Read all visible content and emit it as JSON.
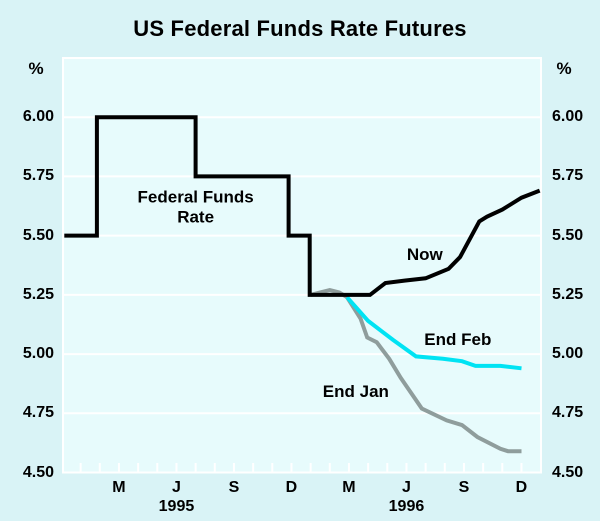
{
  "title": "US Federal Funds Rate Futures",
  "unit_label": "%",
  "colors": {
    "background": "#d9f3f6",
    "plot_background": "#e7fbfc",
    "grid": "#ffffff",
    "fed_funds_now_line": "#000000",
    "end_feb_line": "#00e3f3",
    "end_jan_line": "#8f9d9c"
  },
  "chart_data": {
    "type": "line",
    "title": "US Federal Funds Rate Futures",
    "ylabel": "%",
    "ylim": [
      4.5,
      6.25
    ],
    "x_unit": "months since Dec 1994",
    "xlim_months": [
      0.08,
      25.02
    ],
    "grid": "horizontal white gridlines every 0.25, monthly tick marks along bottom",
    "legend_position": "inline labels next to lines",
    "y_ticks": [
      {
        "v": 6.0,
        "label": "6.00"
      },
      {
        "v": 5.75,
        "label": "5.75"
      },
      {
        "v": 5.5,
        "label": "5.50"
      },
      {
        "v": 5.25,
        "label": "5.25"
      },
      {
        "v": 5.0,
        "label": "5.00"
      },
      {
        "v": 4.75,
        "label": "4.75"
      },
      {
        "v": 4.5,
        "label": "4.50"
      }
    ],
    "x_ticks": [
      {
        "m": 3,
        "label": "M"
      },
      {
        "m": 6,
        "label": "J"
      },
      {
        "m": 9,
        "label": "S"
      },
      {
        "m": 12,
        "label": "D"
      },
      {
        "m": 15,
        "label": "M"
      },
      {
        "m": 18,
        "label": "J"
      },
      {
        "m": 21,
        "label": "S"
      },
      {
        "m": 24,
        "label": "D"
      }
    ],
    "x_year_labels": [
      {
        "m": 6,
        "label": "1995"
      },
      {
        "m": 18,
        "label": "1996"
      }
    ],
    "minor_x_tick_months": [
      1,
      2,
      3,
      4,
      5,
      6,
      7,
      8,
      9,
      10,
      11,
      12,
      13,
      14,
      15,
      16,
      17,
      18,
      19,
      20,
      21,
      22,
      23,
      24
    ],
    "series": [
      {
        "id": "end-jan",
        "name": "End Jan",
        "color": "#8f9d9c",
        "points": [
          [
            13.0,
            5.25
          ],
          [
            13.5,
            5.26
          ],
          [
            14.0,
            5.27
          ],
          [
            14.5,
            5.26
          ],
          [
            14.9,
            5.24
          ],
          [
            15.6,
            5.15
          ],
          [
            15.95,
            5.07
          ],
          [
            16.45,
            5.05
          ],
          [
            17.1,
            4.98
          ],
          [
            17.7,
            4.9
          ],
          [
            18.8,
            4.77
          ],
          [
            20.1,
            4.72
          ],
          [
            20.9,
            4.7
          ],
          [
            21.7,
            4.65
          ],
          [
            22.9,
            4.6
          ],
          [
            23.3,
            4.59
          ],
          [
            24.0,
            4.59
          ]
        ]
      },
      {
        "id": "end-feb",
        "name": "End Feb",
        "color": "#00e3f3",
        "points": [
          [
            14.9,
            5.24
          ],
          [
            16.0,
            5.14
          ],
          [
            17.3,
            5.06
          ],
          [
            18.5,
            4.99
          ],
          [
            19.9,
            4.98
          ],
          [
            20.9,
            4.97
          ],
          [
            21.6,
            4.95
          ],
          [
            22.9,
            4.95
          ],
          [
            24.0,
            4.94
          ]
        ]
      },
      {
        "id": "fed-funds-now",
        "name": "Federal Funds Rate / Now",
        "color": "#000000",
        "points": [
          [
            0.15,
            5.5
          ],
          [
            1.85,
            5.5
          ],
          [
            1.85,
            6.0
          ],
          [
            7.0,
            6.0
          ],
          [
            7.0,
            5.75
          ],
          [
            11.85,
            5.75
          ],
          [
            11.85,
            5.5
          ],
          [
            12.95,
            5.5
          ],
          [
            12.95,
            5.25
          ],
          [
            16.1,
            5.25
          ],
          [
            16.9,
            5.3
          ],
          [
            17.9,
            5.31
          ],
          [
            19.0,
            5.32
          ],
          [
            20.2,
            5.36
          ],
          [
            20.8,
            5.41
          ],
          [
            21.8,
            5.56
          ],
          [
            22.2,
            5.58
          ],
          [
            23.0,
            5.61
          ],
          [
            24.0,
            5.66
          ],
          [
            24.95,
            5.69
          ]
        ]
      }
    ],
    "annotations": [
      {
        "id": "federal-funds-rate",
        "text": "Federal Funds\nRate",
        "m": 7.0,
        "v": 5.62
      },
      {
        "id": "now",
        "text": "Now",
        "m": 18.96,
        "v": 5.42
      },
      {
        "id": "end-feb",
        "text": "End Feb",
        "m": 20.68,
        "v": 5.06
      },
      {
        "id": "end-jan",
        "text": "End Jan",
        "m": 15.36,
        "v": 4.84
      }
    ]
  }
}
